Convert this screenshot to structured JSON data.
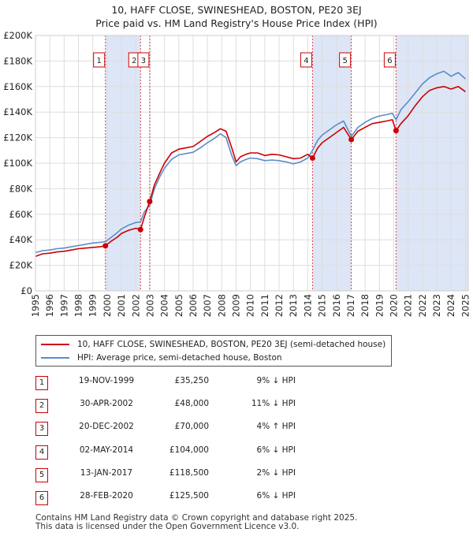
{
  "title_line1": "10, HAFF CLOSE, SWINESHEAD, BOSTON, PE20 3EJ",
  "title_line2": "Price paid vs. HM Land Registry's House Price Index (HPI)",
  "chart_data": {
    "type": "line",
    "xlim": [
      1995,
      2025.2
    ],
    "ylim": [
      0,
      200000
    ],
    "y_ticks": [
      0,
      20000,
      40000,
      60000,
      80000,
      100000,
      120000,
      140000,
      160000,
      180000,
      200000
    ],
    "y_tick_labels": [
      "£0",
      "£20K",
      "£40K",
      "£60K",
      "£80K",
      "£100K",
      "£120K",
      "£140K",
      "£160K",
      "£180K",
      "£200K"
    ],
    "x_ticks": [
      1995,
      1996,
      1997,
      1998,
      1999,
      2000,
      2001,
      2002,
      2003,
      2004,
      2005,
      2006,
      2007,
      2008,
      2009,
      2010,
      2011,
      2012,
      2013,
      2014,
      2015,
      2016,
      2017,
      2018,
      2019,
      2020,
      2021,
      2022,
      2023,
      2024,
      2025
    ],
    "x_tick_labels": [
      "1995",
      "1996",
      "1997",
      "1998",
      "1999",
      "2000",
      "2001",
      "2002",
      "2003",
      "2004",
      "2005",
      "2006",
      "2007",
      "2008",
      "2009",
      "2010",
      "2011",
      "2012",
      "2013",
      "2014",
      "2015",
      "2016",
      "2017",
      "2018",
      "2019",
      "2020",
      "2021",
      "2022",
      "2023",
      "2024",
      "2025"
    ],
    "grid": true,
    "shaded_spans": [
      [
        1999.88,
        2002.33
      ],
      [
        2014.33,
        2017.04
      ],
      [
        2020.16,
        2025.2
      ]
    ],
    "series": [
      {
        "name": "10, HAFF CLOSE, SWINESHEAD, BOSTON, PE20 3EJ (semi-detached house)",
        "color": "#cc0000",
        "x": [
          1995,
          1995.5,
          1996,
          1996.5,
          1997,
          1997.5,
          1998,
          1998.5,
          1999,
          1999.5,
          1999.88,
          2000.3,
          2000.7,
          2001,
          2001.5,
          2002,
          2002.33,
          2002.6,
          2002.97,
          2003.3,
          2003.7,
          2004,
          2004.5,
          2005,
          2005.5,
          2006,
          2006.5,
          2007,
          2007.5,
          2007.9,
          2008.3,
          2008.7,
          2009,
          2009.3,
          2009.7,
          2010,
          2010.5,
          2011,
          2011.5,
          2012,
          2012.5,
          2013,
          2013.5,
          2014,
          2014.33,
          2014.7,
          2015,
          2015.5,
          2016,
          2016.5,
          2017.04,
          2017.5,
          2018,
          2018.5,
          2019,
          2019.5,
          2019.9,
          2020.16,
          2020.5,
          2021,
          2021.5,
          2022,
          2022.5,
          2023,
          2023.5,
          2024,
          2024.5,
          2025
        ],
        "values": [
          27000,
          29000,
          29500,
          30500,
          31000,
          32000,
          33000,
          33500,
          34000,
          34500,
          35250,
          39000,
          42000,
          45000,
          47500,
          49000,
          48000,
          58000,
          70000,
          83000,
          93000,
          100000,
          108000,
          111000,
          112000,
          113000,
          117000,
          121000,
          124000,
          127000,
          125000,
          112000,
          101000,
          105000,
          107000,
          108000,
          108000,
          106000,
          107000,
          106500,
          105000,
          103500,
          104000,
          107000,
          104000,
          112000,
          116000,
          120000,
          124000,
          128000,
          118500,
          125000,
          128000,
          131000,
          132000,
          133000,
          134000,
          125500,
          131000,
          137000,
          145000,
          152000,
          157000,
          159000,
          160000,
          158000,
          160000,
          156000
        ]
      },
      {
        "name": "HPI: Average price, semi-detached house, Boston",
        "color": "#5b8cc8",
        "x": [
          1995,
          1995.5,
          1996,
          1996.5,
          1997,
          1997.5,
          1998,
          1998.5,
          1999,
          1999.5,
          1999.88,
          2000.3,
          2000.7,
          2001,
          2001.5,
          2002,
          2002.33,
          2002.6,
          2002.97,
          2003.3,
          2003.7,
          2004,
          2004.5,
          2005,
          2005.5,
          2006,
          2006.5,
          2007,
          2007.5,
          2007.9,
          2008.3,
          2008.7,
          2009,
          2009.3,
          2009.7,
          2010,
          2010.5,
          2011,
          2011.5,
          2012,
          2012.5,
          2013,
          2013.5,
          2014,
          2014.33,
          2014.7,
          2015,
          2015.5,
          2016,
          2016.5,
          2017.04,
          2017.5,
          2018,
          2018.5,
          2019,
          2019.5,
          2019.9,
          2020.16,
          2020.5,
          2021,
          2021.5,
          2022,
          2022.5,
          2023,
          2023.5,
          2024,
          2024.5,
          2025
        ],
        "values": [
          30000,
          31500,
          32000,
          33000,
          33500,
          34500,
          35500,
          36500,
          37500,
          38000,
          38500,
          42000,
          45500,
          48500,
          51500,
          53500,
          54000,
          62000,
          67000,
          80000,
          90000,
          96000,
          103000,
          106500,
          107500,
          108500,
          112000,
          116000,
          119500,
          123000,
          120000,
          106000,
          98000,
          101000,
          103000,
          104000,
          103500,
          102000,
          102500,
          102000,
          101000,
          99500,
          101000,
          104000,
          110000,
          118000,
          122000,
          126000,
          130000,
          133000,
          121000,
          128000,
          132000,
          135000,
          137000,
          138000,
          139000,
          134000,
          142000,
          148000,
          155000,
          162000,
          167000,
          170000,
          172000,
          168000,
          171000,
          166000
        ]
      }
    ],
    "markers": [
      {
        "label": "1",
        "x": 1999.88,
        "value": 35250
      },
      {
        "label": "2",
        "x": 2002.33,
        "value": 48000
      },
      {
        "label": "3",
        "x": 2002.97,
        "value": 70000
      },
      {
        "label": "4",
        "x": 2014.33,
        "value": 104000
      },
      {
        "label": "5",
        "x": 2017.04,
        "value": 118500
      },
      {
        "label": "6",
        "x": 2020.16,
        "value": 125500
      }
    ]
  },
  "legend": {
    "red_label": "10, HAFF CLOSE, SWINESHEAD, BOSTON, PE20 3EJ (semi-detached house)",
    "blue_label": "HPI: Average price, semi-detached house, Boston"
  },
  "transactions": [
    {
      "num": "1",
      "date": "19-NOV-1999",
      "price": "£35,250",
      "hpi": "9% ↓ HPI"
    },
    {
      "num": "2",
      "date": "30-APR-2002",
      "price": "£48,000",
      "hpi": "11% ↓ HPI"
    },
    {
      "num": "3",
      "date": "20-DEC-2002",
      "price": "£70,000",
      "hpi": "4% ↑ HPI"
    },
    {
      "num": "4",
      "date": "02-MAY-2014",
      "price": "£104,000",
      "hpi": "6% ↓ HPI"
    },
    {
      "num": "5",
      "date": "13-JAN-2017",
      "price": "£118,500",
      "hpi": "2% ↓ HPI"
    },
    {
      "num": "6",
      "date": "28-FEB-2020",
      "price": "£125,500",
      "hpi": "6% ↓ HPI"
    }
  ],
  "footer_line1": "Contains HM Land Registry data © Crown copyright and database right 2025.",
  "footer_line2": "This data is licensed under the Open Government Licence v3.0."
}
